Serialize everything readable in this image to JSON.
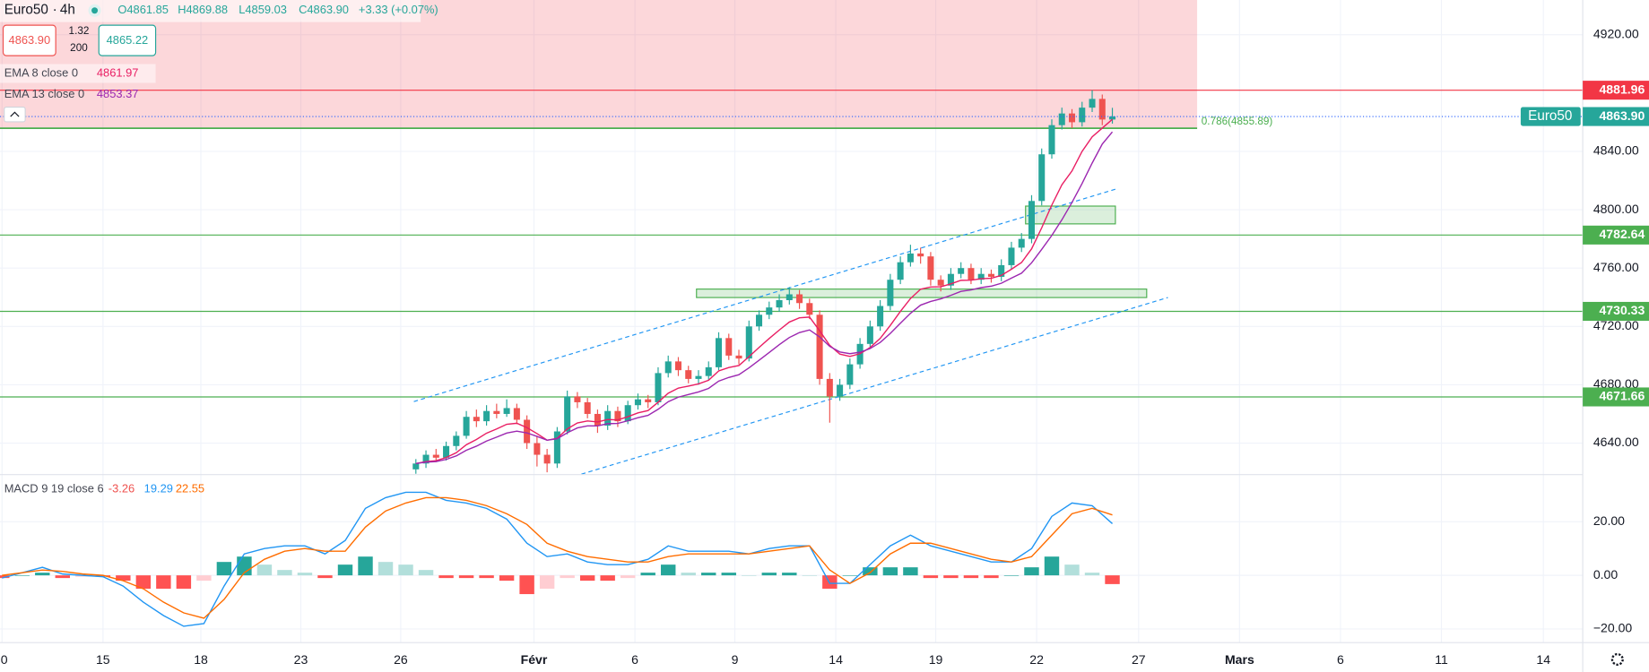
{
  "header": {
    "symbol": "Euro50",
    "interval": "4h",
    "ohlc": [
      "O4861.85",
      "H4869.88",
      "L4859.03",
      "C4863.90"
    ],
    "change": "+3.33 (+0.07%)",
    "sell": "4863.90",
    "spread": "1.32",
    "qty": "200",
    "buy": "4865.22"
  },
  "chart_data": [
    {
      "type": "candlestick",
      "x": [
        0,
        1,
        2,
        3,
        4,
        5,
        6,
        7,
        8,
        9,
        10,
        11,
        12,
        13,
        14,
        15,
        16,
        17,
        18,
        19,
        20,
        21,
        22,
        23,
        24,
        25,
        26,
        27,
        28,
        29,
        30,
        31,
        32,
        33,
        34,
        35,
        36,
        37,
        38,
        39,
        40,
        41,
        42,
        43,
        44,
        45,
        46,
        47,
        48,
        49,
        50,
        51,
        52,
        53,
        54,
        55,
        56,
        57,
        58,
        59,
        60,
        61,
        62,
        63,
        64,
        65,
        66,
        67,
        68,
        69
      ],
      "open": [
        4622,
        4626,
        4632,
        4630,
        4638,
        4645,
        4658,
        4655,
        4662,
        4660,
        4664,
        4656,
        4640,
        4632,
        4626,
        4648,
        4672,
        4668,
        4660,
        4652,
        4662,
        4655,
        4666,
        4670,
        4668,
        4688,
        4696,
        4690,
        4684,
        4686,
        4692,
        4712,
        4700,
        4698,
        4720,
        4728,
        4733,
        4738,
        4742,
        4736,
        4728,
        4684,
        4672,
        4680,
        4694,
        4708,
        4720,
        4734,
        4752,
        4764,
        4770,
        4768,
        4752,
        4748,
        4756,
        4760,
        4752,
        4756,
        4754,
        4762,
        4774,
        4780,
        4806,
        4838,
        4858,
        4866,
        4860,
        4870,
        4876,
        4861.85
      ],
      "high": [
        4629,
        4635,
        4636,
        4641,
        4648,
        4662,
        4663,
        4666,
        4667,
        4670,
        4667,
        4659,
        4645,
        4636,
        4651,
        4676,
        4675,
        4671,
        4663,
        4666,
        4665,
        4669,
        4674,
        4673,
        4692,
        4700,
        4699,
        4693,
        4690,
        4696,
        4716,
        4715,
        4704,
        4724,
        4731,
        4737,
        4742,
        4747,
        4745,
        4739,
        4731,
        4688,
        4684,
        4698,
        4712,
        4724,
        4738,
        4756,
        4768,
        4776,
        4774,
        4771,
        4755,
        4760,
        4764,
        4763,
        4760,
        4759,
        4766,
        4778,
        4784,
        4810,
        4842,
        4862,
        4870,
        4869,
        4874,
        4881.96,
        4879,
        4869.88
      ],
      "low": [
        4619,
        4623,
        4627,
        4628,
        4635,
        4643,
        4651,
        4652,
        4657,
        4658,
        4653,
        4636,
        4624,
        4620,
        4623,
        4646,
        4664,
        4657,
        4647,
        4649,
        4651,
        4653,
        4663,
        4664,
        4666,
        4685,
        4686,
        4681,
        4680,
        4683,
        4690,
        4697,
        4694,
        4696,
        4717,
        4725,
        4730,
        4735,
        4732,
        4725,
        4680,
        4654,
        4669,
        4677,
        4691,
        4705,
        4717,
        4731,
        4749,
        4761,
        4763,
        4748,
        4744,
        4745,
        4753,
        4749,
        4749,
        4750,
        4751,
        4759,
        4771,
        4777,
        4803,
        4835,
        4855,
        4856,
        4857,
        4867,
        4858,
        4859.03
      ],
      "close": [
        4626,
        4632,
        4630,
        4638,
        4645,
        4658,
        4655,
        4662,
        4660,
        4664,
        4656,
        4640,
        4632,
        4626,
        4648,
        4672,
        4668,
        4660,
        4652,
        4662,
        4655,
        4666,
        4670,
        4668,
        4688,
        4696,
        4690,
        4684,
        4686,
        4692,
        4712,
        4700,
        4698,
        4720,
        4728,
        4733,
        4738,
        4742,
        4736,
        4728,
        4684,
        4672,
        4680,
        4694,
        4708,
        4720,
        4734,
        4752,
        4764,
        4770,
        4768,
        4752,
        4748,
        4756,
        4760,
        4752,
        4756,
        4754,
        4762,
        4774,
        4780,
        4806,
        4838,
        4858,
        4866,
        4860,
        4870,
        4876,
        4861.85,
        4863.9
      ],
      "up_color": "#26a69a",
      "down_color": "#ef5350",
      "series": [
        {
          "name": "EMA 8 close 0",
          "color": "#e91e63",
          "values": [
            4626,
            4627.3,
            4627.9,
            4630.1,
            4633.4,
            4638.9,
            4642.5,
            4646.8,
            4649.7,
            4652.9,
            4653.6,
            4650.6,
            4646.5,
            4642,
            4643.3,
            4649.7,
            4653.8,
            4655.2,
            4654.5,
            4656.2,
            4655.9,
            4658.1,
            4660.7,
            4662.3,
            4668,
            4674.2,
            4677.7,
            4679.1,
            4680.6,
            4683.1,
            4689.5,
            4691.8,
            4693.2,
            4699.2,
            4705.6,
            4711.7,
            4717.5,
            4723,
            4725.9,
            4726.4,
            4717,
            4707,
            4701,
            4699.4,
            4701.3,
            4705.5,
            4711.8,
            4720.7,
            4730.3,
            4739.1,
            4745.5,
            4747,
            4747.2,
            4749.2,
            4751.6,
            4751.7,
            4752.7,
            4753,
            4755,
            4759.2,
            4763.8,
            4773.2,
            4787.6,
            4803.2,
            4817.1,
            4826.6,
            4840,
            4850,
            4856,
            4861.97
          ]
        },
        {
          "name": "EMA 13 close 0",
          "color": "#9c27b0",
          "values": [
            4626,
            4626.9,
            4627.3,
            4628.8,
            4631.2,
            4635.1,
            4637.9,
            4641.4,
            4644.1,
            4646.9,
            4648.2,
            4647,
            4644.6,
            4642,
            4643,
            4647.1,
            4650.4,
            4651.8,
            4651.8,
            4653.3,
            4653.5,
            4655.3,
            4657.4,
            4659,
            4663.2,
            4668.4,
            4671.5,
            4673.3,
            4675.1,
            4677.5,
            4682.5,
            4685,
            4686.9,
            4691.6,
            4696.8,
            4702.1,
            4707.5,
            4712.4,
            4715.8,
            4717.6,
            4712.8,
            4706.3,
            4702.5,
            4701.3,
            4702.3,
            4704.8,
            4709,
            4715.2,
            4722.2,
            4729,
            4734.6,
            4737.1,
            4738.9,
            4741.3,
            4744,
            4745,
            4746.6,
            4747.6,
            4749.6,
            4753.1,
            4756.5,
            4763.6,
            4772.8,
            4782.4,
            4793.1,
            4805,
            4818,
            4832,
            4845,
            4853.37
          ]
        }
      ],
      "xlim": [
        -41.2,
        115.6
      ],
      "xticks": [
        {
          "value": -41,
          "label": "0"
        },
        {
          "value": -31,
          "label": "15"
        },
        {
          "value": -21.3,
          "label": "18"
        },
        {
          "value": -11.4,
          "label": "23"
        },
        {
          "value": -1.5,
          "label": "26"
        },
        {
          "value": 11.7,
          "label": "Févr"
        },
        {
          "value": 21.7,
          "label": "6"
        },
        {
          "value": 31.6,
          "label": "9"
        },
        {
          "value": 41.6,
          "label": "14"
        },
        {
          "value": 51.5,
          "label": "19"
        },
        {
          "value": 61.5,
          "label": "22"
        },
        {
          "value": 71.6,
          "label": "27"
        },
        {
          "value": 81.6,
          "label": "Mars"
        },
        {
          "value": 91.6,
          "label": "6"
        },
        {
          "value": 101.6,
          "label": "11"
        },
        {
          "value": 111.7,
          "label": "14"
        }
      ],
      "ylim": [
        4618.4,
        4943.8
      ],
      "yticks": [
        {
          "value": 4640,
          "label": "4640.00"
        },
        {
          "value": 4680,
          "label": "4680.00"
        },
        {
          "value": 4720,
          "label": "4720.00"
        },
        {
          "value": 4760,
          "label": "4760.00"
        },
        {
          "value": 4800,
          "label": "4800.00"
        },
        {
          "value": 4840,
          "label": "4840.00"
        },
        {
          "value": 4920,
          "label": "4920.00"
        }
      ],
      "grid": true,
      "levels": [
        {
          "value": 4881.96,
          "color": "#f23645"
        },
        {
          "value": 4782.64,
          "color": "#4caf50"
        },
        {
          "value": 4730.33,
          "color": "#4caf50"
        },
        {
          "value": 4671.66,
          "color": "#4caf50"
        }
      ],
      "last_price": {
        "name": "Euro50",
        "value": 4863.9,
        "label": "4863.90",
        "color": "#26a69a"
      },
      "fib": {
        "value": 4855.89,
        "label": "0.786(4855.89)",
        "x_end": 77.4,
        "color": "#4caf50"
      },
      "boxes": [
        {
          "x": [
            27.8,
            72.4
          ],
          "y": [
            4739.8,
            4745.6
          ]
        },
        {
          "x": [
            60.4,
            69.3
          ],
          "y": [
            4790.3,
            4802.5
          ]
        }
      ],
      "channel": [
        {
          "x": [
            -0.2,
            69.3
          ],
          "y": [
            4668.5,
            4814.1
          ]
        },
        {
          "x": [
            16.4,
            74.5
          ],
          "y": [
            4618.7,
            4739.8
          ]
        }
      ]
    },
    {
      "type": "macd",
      "title": "MACD 9 19 close 6",
      "x": [
        -41,
        -39,
        -37,
        -35,
        -33,
        -31,
        -29,
        -27,
        -25,
        -23,
        -21,
        -19,
        -17,
        -15,
        -13,
        -11,
        -9,
        -7,
        -5,
        -3,
        -1,
        1,
        3,
        5,
        7,
        9,
        11,
        13,
        15,
        17,
        19,
        21,
        23,
        25,
        27,
        29,
        31,
        33,
        35,
        37,
        39,
        41,
        43,
        45,
        47,
        49,
        51,
        53,
        55,
        57,
        59,
        61,
        63,
        65,
        67,
        69
      ],
      "series": [
        {
          "color": "#2196f3",
          "values": [
            -1,
            1,
            3,
            0.5,
            0,
            -0.5,
            -4,
            -10,
            -15,
            -19,
            -18,
            -4,
            8,
            10,
            11,
            11,
            8,
            13,
            25,
            29,
            31,
            31,
            28,
            27,
            25,
            21,
            12,
            7,
            8,
            5,
            4,
            4,
            6,
            11,
            9,
            9,
            9,
            8,
            10,
            11,
            11,
            -3,
            -3,
            4,
            11,
            15,
            11,
            9,
            7,
            5,
            5,
            10,
            22,
            27,
            26,
            19.29
          ]
        },
        {
          "color": "#ff6d00",
          "values": [
            0,
            1,
            2,
            1.5,
            0.5,
            0,
            -2,
            -5,
            -10,
            -14,
            -16,
            -9,
            1,
            6,
            9,
            10,
            9,
            9,
            18,
            24,
            27,
            29,
            29,
            28,
            26,
            23,
            19,
            12,
            9,
            7,
            6,
            5,
            5,
            7,
            8,
            8,
            8,
            8,
            9,
            10,
            11,
            2,
            -3,
            1,
            8,
            12,
            12,
            10,
            8,
            6,
            5,
            7,
            15,
            23,
            25,
            22.55
          ]
        }
      ],
      "histogram": {
        "values": [
          -1,
          0,
          1,
          -1,
          -0.5,
          -0.5,
          -2,
          -5,
          -5,
          -5,
          -2,
          5,
          7,
          4,
          2,
          1,
          -1,
          4,
          7,
          5,
          4,
          2,
          -1,
          -1,
          -1,
          -2,
          -7,
          -5,
          -1,
          -2,
          -2,
          -1,
          1,
          4,
          1,
          1,
          1,
          0,
          1,
          1,
          0,
          -5,
          0,
          3,
          3,
          3,
          -1,
          -1,
          -1,
          -1,
          0,
          3,
          7,
          4,
          1,
          -3.26
        ],
        "colors": [
          "#26a69a",
          "#b2dfdb",
          "#ff5252",
          "#ffcdd2"
        ]
      },
      "ylim": [
        -25.1,
        37.6
      ],
      "yticks": [
        {
          "value": -20,
          "label": "−20.00"
        },
        {
          "value": 0,
          "label": "0.00"
        },
        {
          "value": 20,
          "label": "20.00"
        }
      ],
      "grid": true
    }
  ]
}
